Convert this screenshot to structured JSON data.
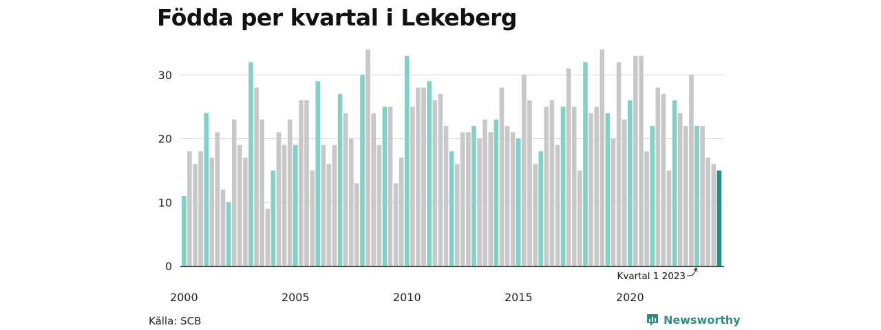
{
  "chart_data": {
    "type": "bar",
    "title": "Födda per kvartal i Lekeberg",
    "xlabel": "",
    "ylabel": "",
    "ylim": [
      0,
      35
    ],
    "yticks": [
      0,
      10,
      20,
      30
    ],
    "x_tick_labels": [
      "2000",
      "2005",
      "2010",
      "2015",
      "2020"
    ],
    "x_tick_years": [
      2000,
      2005,
      2010,
      2015,
      2020
    ],
    "grid": true,
    "first_year": 2000,
    "values": [
      11,
      18,
      16,
      18,
      24,
      17,
      21,
      12,
      10,
      23,
      19,
      17,
      32,
      28,
      23,
      9,
      15,
      21,
      19,
      23,
      19,
      26,
      26,
      15,
      29,
      19,
      16,
      19,
      27,
      24,
      20,
      13,
      30,
      34,
      24,
      19,
      25,
      25,
      13,
      17,
      33,
      25,
      28,
      28,
      29,
      26,
      27,
      22,
      18,
      16,
      21,
      21,
      22,
      20,
      23,
      21,
      23,
      28,
      22,
      21,
      20,
      30,
      26,
      16,
      18,
      25,
      26,
      19,
      25,
      31,
      25,
      15,
      32,
      24,
      25,
      34,
      24,
      20,
      32,
      23,
      26,
      33,
      33,
      18,
      22,
      28,
      27,
      15,
      26,
      24,
      22,
      30,
      22,
      22,
      17,
      16,
      15
    ],
    "annotation": {
      "text": "Kvartal 1 2023",
      "index": 92
    },
    "colors": {
      "q1": "#82d1c6",
      "other": "#c8c8c8",
      "latest": "#1f9081",
      "grid": "#dddddd",
      "axis": "#333333"
    }
  },
  "footer": {
    "source": "Källa: SCB",
    "brand": "Newsworthy"
  },
  "brand_icon": "newsworthy-logo-icon"
}
